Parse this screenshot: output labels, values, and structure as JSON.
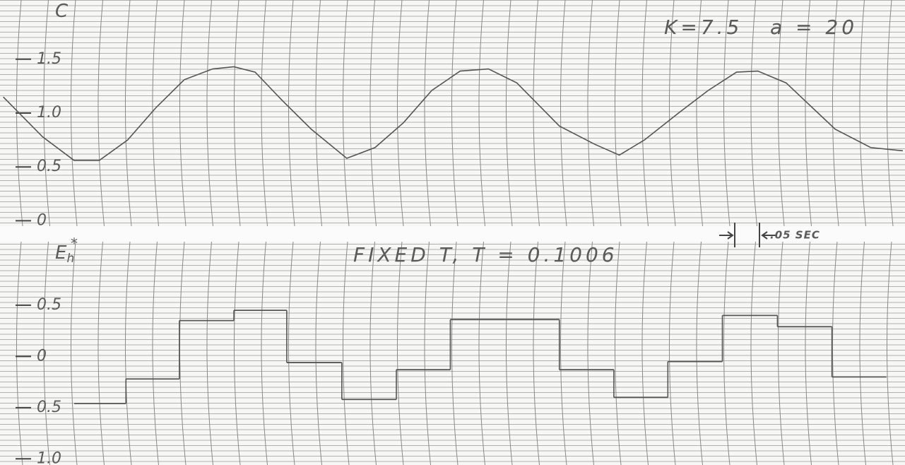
{
  "chart_data": [
    {
      "type": "line",
      "y_label": "C",
      "annotations": [
        "K=7.5",
        "a = 20",
        ".05 SEC"
      ],
      "x": [
        0.006,
        0.078,
        0.136,
        0.182,
        0.234,
        0.286,
        0.338,
        0.39,
        0.429,
        0.468,
        0.519,
        0.571,
        0.636,
        0.688,
        0.74,
        0.792,
        0.844,
        0.896,
        0.948,
        1.026,
        1.091,
        1.136,
        1.182,
        1.247,
        1.299,
        1.351,
        1.39,
        1.442,
        1.532,
        1.597,
        1.656
      ],
      "values": [
        1.15,
        0.78,
        0.56,
        0.56,
        0.75,
        1.05,
        1.31,
        1.41,
        1.43,
        1.38,
        1.11,
        0.85,
        0.58,
        0.68,
        0.91,
        1.21,
        1.39,
        1.41,
        1.28,
        0.88,
        0.71,
        0.61,
        0.75,
        1.01,
        1.21,
        1.38,
        1.39,
        1.28,
        0.85,
        0.68,
        0.65
      ],
      "color": "#555555",
      "xlim": [
        0,
        1.66
      ],
      "ylim": [
        -0.05,
        2.05
      ],
      "yticks": [
        0,
        0.5,
        {
          "value": 1,
          "label": "1.0"
        },
        1.5
      ]
    },
    {
      "type": "step",
      "y_label": "E",
      "y_label_sub": "h",
      "y_label_sup": "*",
      "annotations": [
        "FIXED T,  T = 0.1006"
      ],
      "x": [
        0.136,
        0.231,
        0.329,
        0.429,
        0.526,
        0.627,
        0.727,
        0.826,
        0.926,
        1.026,
        1.126,
        1.225,
        1.325,
        1.426,
        1.526
      ],
      "values": [
        -0.46,
        -0.22,
        0.35,
        0.45,
        -0.06,
        -0.42,
        -0.13,
        0.36,
        0.36,
        -0.13,
        -0.4,
        -0.05,
        0.4,
        0.29,
        -0.2
      ],
      "color": "#555555",
      "xlim": [
        0,
        1.66
      ],
      "ylim": [
        -1.06,
        1.12
      ],
      "yticks": [
        {
          "value": 0.5,
          "label": "0.5"
        },
        0,
        {
          "value": -0.5,
          "label": "0.5"
        },
        {
          "value": -1,
          "label": "1.0"
        }
      ]
    }
  ]
}
